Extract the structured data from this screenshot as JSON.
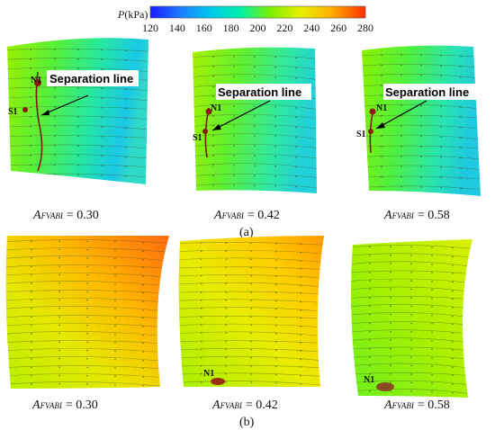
{
  "colorbar": {
    "label_var": "P",
    "label_unit": "(kPa)",
    "ticks": [
      "120",
      "140",
      "160",
      "180",
      "200",
      "220",
      "240",
      "260",
      "280"
    ],
    "colors": [
      "#1a1aff",
      "#1e90ff",
      "#00e0f0",
      "#00f0a0",
      "#8ef000",
      "#e8f000",
      "#ffc000",
      "#ff7a10",
      "#ff3000"
    ]
  },
  "row_a": {
    "panel_label": "(a)",
    "callout": "Separation line",
    "panels": [
      {
        "var": "A",
        "sub": "FVABI",
        "value": "= 0.30",
        "s_label": "S1",
        "n_label": "N1"
      },
      {
        "var": "A",
        "sub": "FVABI",
        "value": "= 0.42",
        "s_label": "S1",
        "n_label": "N1"
      },
      {
        "var": "A",
        "sub": "FVABI",
        "value": "= 0.58",
        "s_label": "S1",
        "n_label": "N1"
      }
    ]
  },
  "row_b": {
    "panel_label": "(b)",
    "panels": [
      {
        "var": "A",
        "sub": "FVABI",
        "value": "= 0.30"
      },
      {
        "var": "A",
        "sub": "FVABI",
        "value": "= 0.42",
        "n_label": "N1"
      },
      {
        "var": "A",
        "sub": "FVABI",
        "value": "= 0.58",
        "n_label": "N1"
      }
    ]
  }
}
